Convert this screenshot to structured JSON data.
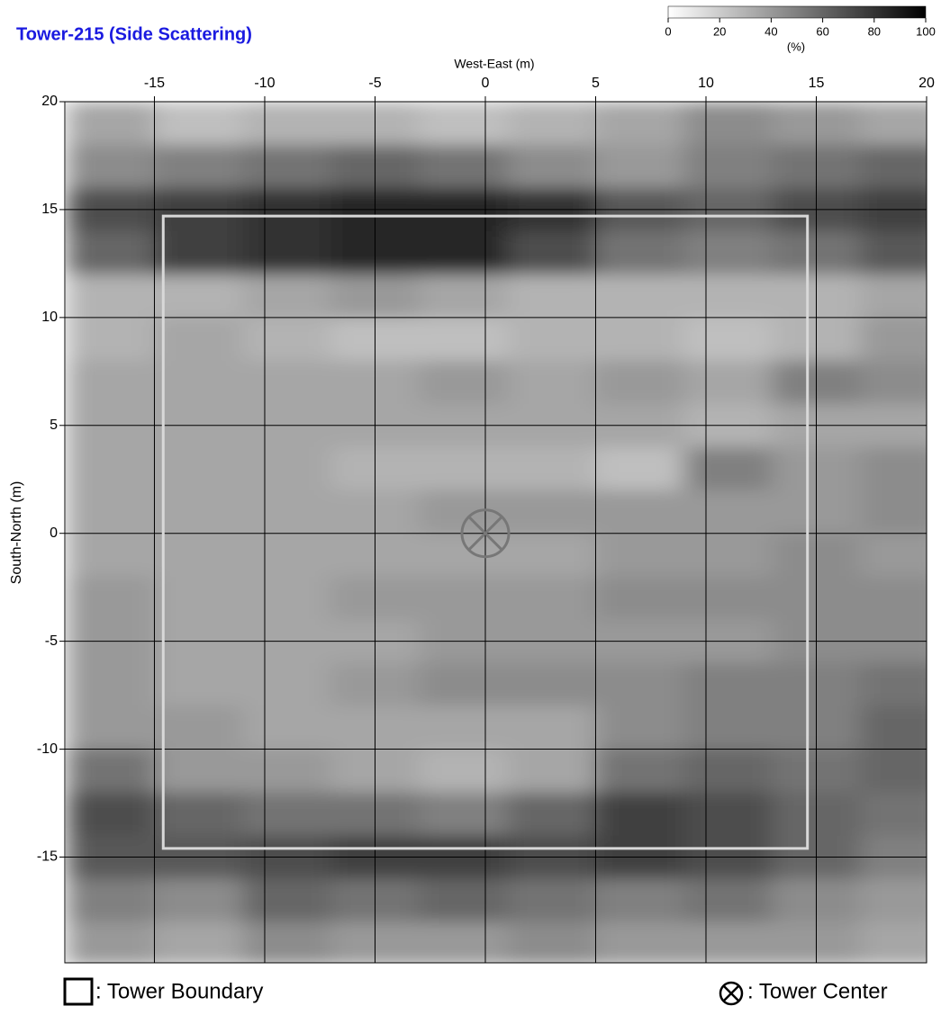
{
  "chart_data": {
    "type": "heatmap",
    "title": "Tower-215 (Side Scattering)",
    "x_label": "West-East (m)",
    "y_label": "South-North (m)",
    "x": [
      -17,
      -13,
      -9,
      -5,
      -1,
      3,
      7,
      11,
      15,
      19
    ],
    "y": [
      19,
      17,
      15,
      13,
      11,
      9,
      7,
      5,
      3,
      1,
      -1,
      -3,
      -5,
      -7,
      -9,
      -11,
      -13,
      -15,
      -17,
      -19
    ],
    "values": [
      [
        35,
        25,
        30,
        30,
        25,
        30,
        35,
        45,
        40,
        35
      ],
      [
        45,
        50,
        55,
        60,
        55,
        45,
        40,
        50,
        55,
        60
      ],
      [
        70,
        75,
        80,
        85,
        85,
        80,
        65,
        60,
        70,
        75
      ],
      [
        60,
        75,
        80,
        85,
        85,
        70,
        55,
        50,
        55,
        65
      ],
      [
        30,
        30,
        35,
        40,
        35,
        30,
        30,
        30,
        30,
        35
      ],
      [
        30,
        35,
        30,
        25,
        25,
        30,
        30,
        25,
        30,
        40
      ],
      [
        35,
        35,
        35,
        35,
        40,
        35,
        40,
        35,
        50,
        45
      ],
      [
        35,
        35,
        35,
        35,
        35,
        35,
        35,
        30,
        35,
        35
      ],
      [
        35,
        35,
        35,
        30,
        30,
        30,
        25,
        50,
        40,
        45
      ],
      [
        35,
        35,
        35,
        35,
        40,
        40,
        40,
        40,
        40,
        45
      ],
      [
        35,
        35,
        35,
        35,
        35,
        35,
        40,
        40,
        45,
        40
      ],
      [
        40,
        35,
        35,
        40,
        40,
        40,
        45,
        45,
        45,
        45
      ],
      [
        40,
        35,
        35,
        35,
        40,
        40,
        40,
        40,
        45,
        45
      ],
      [
        40,
        35,
        35,
        40,
        45,
        45,
        45,
        50,
        50,
        55
      ],
      [
        40,
        40,
        35,
        35,
        35,
        35,
        45,
        50,
        50,
        60
      ],
      [
        55,
        40,
        40,
        35,
        30,
        35,
        55,
        60,
        55,
        60
      ],
      [
        70,
        60,
        55,
        55,
        50,
        60,
        75,
        70,
        60,
        55
      ],
      [
        65,
        65,
        70,
        75,
        75,
        70,
        75,
        70,
        60,
        50
      ],
      [
        50,
        45,
        60,
        55,
        60,
        55,
        50,
        55,
        45,
        40
      ],
      [
        40,
        35,
        45,
        40,
        40,
        45,
        40,
        40,
        40,
        35
      ]
    ],
    "xlim": [
      -19.06,
      20
    ],
    "ylim": [
      -19.9,
      20
    ],
    "xticks": [
      -15,
      -10,
      -5,
      0,
      5,
      10,
      15,
      20
    ],
    "yticks": [
      20,
      15,
      10,
      5,
      0,
      -5,
      -10,
      -15
    ],
    "grid": true,
    "zlim": [
      0,
      100
    ],
    "zticks": [
      0,
      20,
      40,
      60,
      80,
      100
    ],
    "z_label": "(%)",
    "colormap": [
      "#ffffff",
      "#000000"
    ],
    "boundary": {
      "x": [
        -14.6,
        14.6
      ],
      "y": [
        -14.6,
        14.7
      ]
    },
    "center": [
      0,
      0
    ],
    "legend": [
      ": Tower Boundary",
      ": Tower Center"
    ]
  }
}
